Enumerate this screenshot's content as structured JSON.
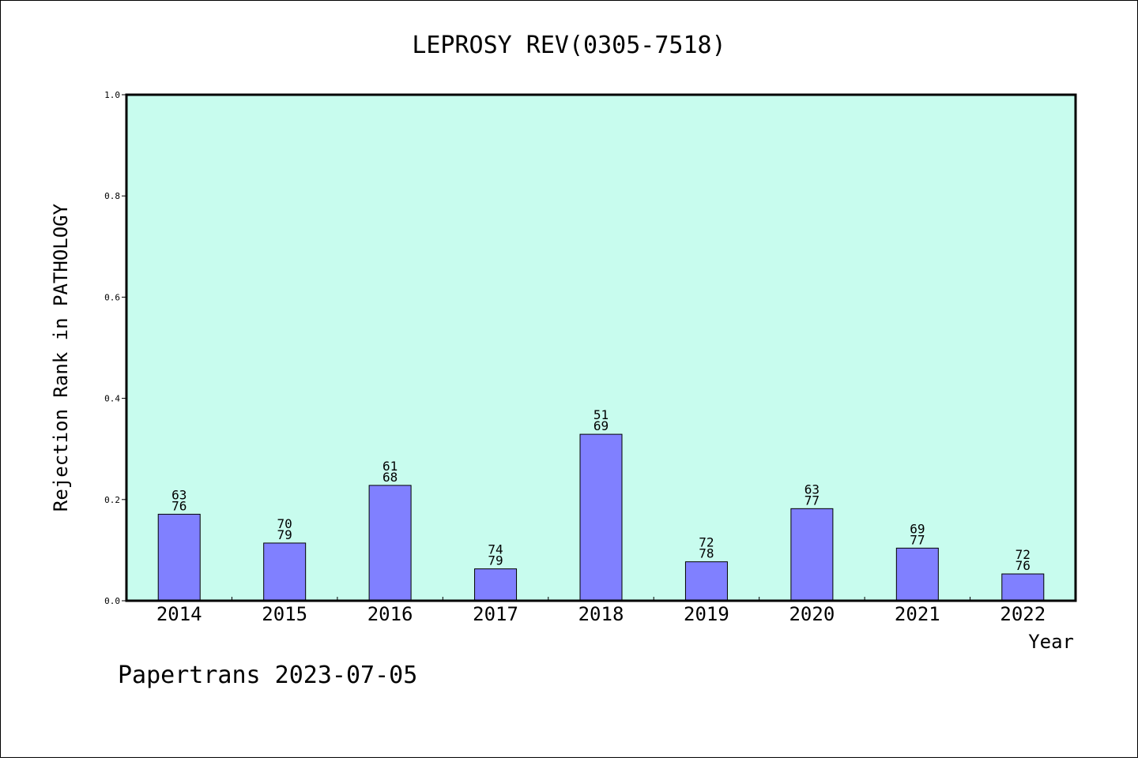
{
  "chart_data": {
    "type": "bar",
    "title": "LEPROSY REV(0305-7518)",
    "xlabel": "Year",
    "ylabel": "Rejection Rank in PATHOLOGY",
    "ylim": [
      0,
      1.0
    ],
    "yticks": [
      "0.0",
      "0.2",
      "0.4",
      "0.6",
      "0.8",
      "1.0"
    ],
    "categories": [
      "2014",
      "2015",
      "2016",
      "2017",
      "2018",
      "2019",
      "2020",
      "2021",
      "2022"
    ],
    "values": [
      0.171,
      0.114,
      0.228,
      0.063,
      0.329,
      0.077,
      0.182,
      0.104,
      0.053
    ],
    "labels_top": [
      "63",
      "70",
      "61",
      "74",
      "51",
      "72",
      "63",
      "69",
      "72"
    ],
    "labels_bottom": [
      "76",
      "79",
      "68",
      "79",
      "69",
      "78",
      "77",
      "77",
      "76"
    ],
    "grid": false,
    "colors": {
      "plot_background": "#c8fcee",
      "bar_fill": "#8080ff",
      "bar_stroke": "#000000"
    }
  },
  "footer": "Papertrans 2023-07-05"
}
